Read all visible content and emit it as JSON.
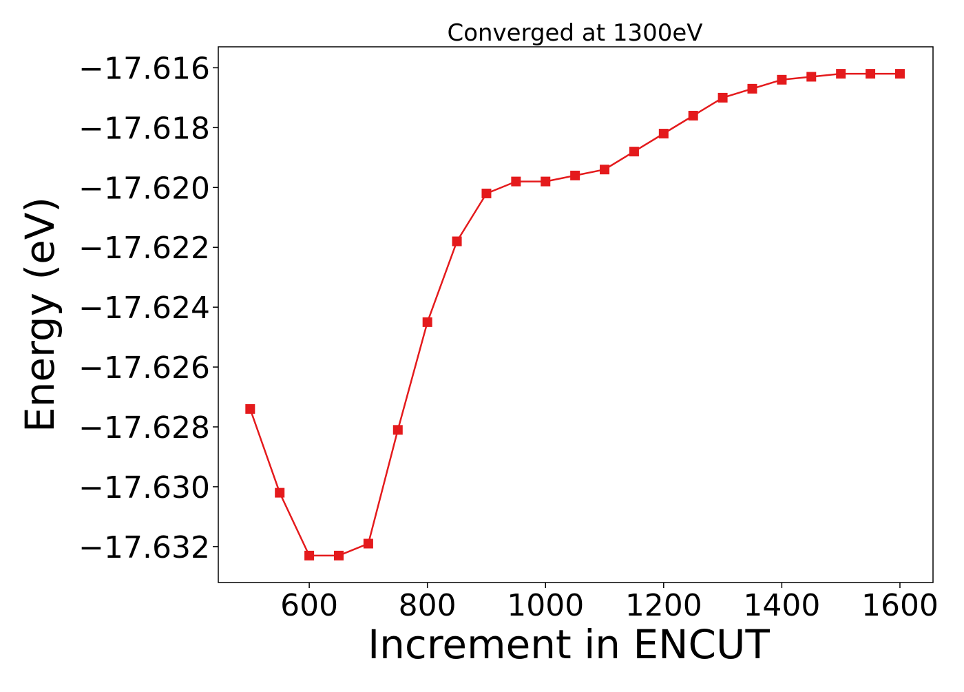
{
  "chart_data": {
    "type": "line",
    "title": "Converged at 1300eV",
    "xlabel": "Increment in ENCUT",
    "ylabel": "Energy (eV)",
    "xlim": [
      446,
      1656
    ],
    "ylim": [
      -17.6332,
      -17.6153
    ],
    "xticks": [
      600,
      800,
      1000,
      1200,
      1400,
      1600
    ],
    "yticks": [
      -17.616,
      -17.618,
      -17.62,
      -17.622,
      -17.624,
      -17.626,
      -17.628,
      -17.63,
      -17.632
    ],
    "ytick_labels": [
      "−17.616",
      "−17.618",
      "−17.620",
      "−17.622",
      "−17.624",
      "−17.626",
      "−17.628",
      "−17.630",
      "−17.632"
    ],
    "grid": false,
    "legend": "none",
    "marker": "square",
    "color": "#e41a1c",
    "series": [
      {
        "x": [
          500,
          550,
          600,
          650,
          700,
          750,
          800,
          850,
          900,
          950,
          1000,
          1050,
          1100,
          1150,
          1200,
          1250,
          1300,
          1350,
          1400,
          1450,
          1500,
          1550,
          1600
        ],
        "values": [
          -17.6274,
          -17.6302,
          -17.6323,
          -17.6323,
          -17.6319,
          -17.6281,
          -17.6245,
          -17.6218,
          -17.6202,
          -17.6198,
          -17.6198,
          -17.6196,
          -17.6194,
          -17.6188,
          -17.6182,
          -17.6176,
          -17.617,
          -17.6167,
          -17.6164,
          -17.6163,
          -17.6162,
          -17.6162,
          -17.6162
        ]
      }
    ]
  }
}
